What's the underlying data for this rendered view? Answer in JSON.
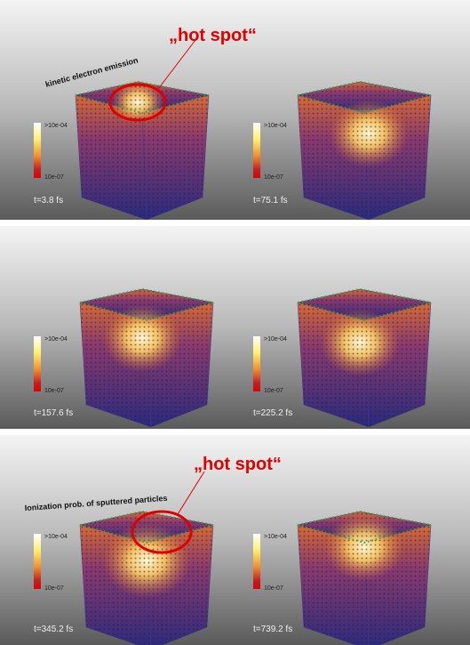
{
  "annotations": {
    "hot_spot_top": "„hot spot“",
    "kinetic": "kinetic electron emission",
    "hot_spot_bottom": "„hot spot“",
    "ionization": "Ionization prob. of sputtered particles"
  },
  "panels": [
    {
      "time": "t=3.8 fs",
      "colorbar_max": ">10e-04",
      "colorbar_min": "10e-07"
    },
    {
      "time": "t=75.1 fs",
      "colorbar_max": ">10e-04",
      "colorbar_min": "10e-07"
    },
    {
      "time": "t=157.6 fs",
      "colorbar_max": ">10e-04",
      "colorbar_min": "10e-07"
    },
    {
      "time": "t=225.2 fs",
      "colorbar_max": ">10e-04",
      "colorbar_min": "10e-07"
    },
    {
      "time": "t=345.2 fs",
      "colorbar_max": ">10e-04",
      "colorbar_min": "10e-07"
    },
    {
      "time": "t=739.2 fs",
      "colorbar_max": ">10e-04",
      "colorbar_min": "10e-07"
    }
  ]
}
